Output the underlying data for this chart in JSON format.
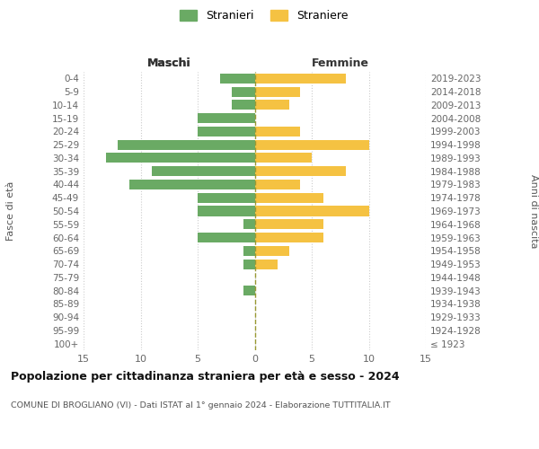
{
  "age_groups": [
    "100+",
    "95-99",
    "90-94",
    "85-89",
    "80-84",
    "75-79",
    "70-74",
    "65-69",
    "60-64",
    "55-59",
    "50-54",
    "45-49",
    "40-44",
    "35-39",
    "30-34",
    "25-29",
    "20-24",
    "15-19",
    "10-14",
    "5-9",
    "0-4"
  ],
  "birth_years": [
    "≤ 1923",
    "1924-1928",
    "1929-1933",
    "1934-1938",
    "1939-1943",
    "1944-1948",
    "1949-1953",
    "1954-1958",
    "1959-1963",
    "1964-1968",
    "1969-1973",
    "1974-1978",
    "1979-1983",
    "1984-1988",
    "1989-1993",
    "1994-1998",
    "1999-2003",
    "2004-2008",
    "2009-2013",
    "2014-2018",
    "2019-2023"
  ],
  "maschi": [
    0,
    0,
    0,
    0,
    1,
    0,
    1,
    1,
    5,
    1,
    5,
    5,
    11,
    9,
    13,
    12,
    5,
    5,
    2,
    2,
    3
  ],
  "femmine": [
    0,
    0,
    0,
    0,
    0,
    0,
    2,
    3,
    6,
    6,
    10,
    6,
    4,
    8,
    5,
    10,
    4,
    0,
    3,
    4,
    8
  ],
  "maschi_color": "#6aaa64",
  "femmine_color": "#f5c242",
  "background_color": "#ffffff",
  "grid_color": "#cccccc",
  "title": "Popolazione per cittadinanza straniera per età e sesso - 2024",
  "subtitle": "COMUNE DI BROGLIANO (VI) - Dati ISTAT al 1° gennaio 2024 - Elaborazione TUTTITALIA.IT",
  "legend_maschi": "Stranieri",
  "legend_femmine": "Straniere",
  "label_maschi": "Maschi",
  "label_femmine": "Femmine",
  "ylabel_left": "Fasce di età",
  "ylabel_right": "Anni di nascita",
  "xlim": 15,
  "bar_height": 0.75
}
